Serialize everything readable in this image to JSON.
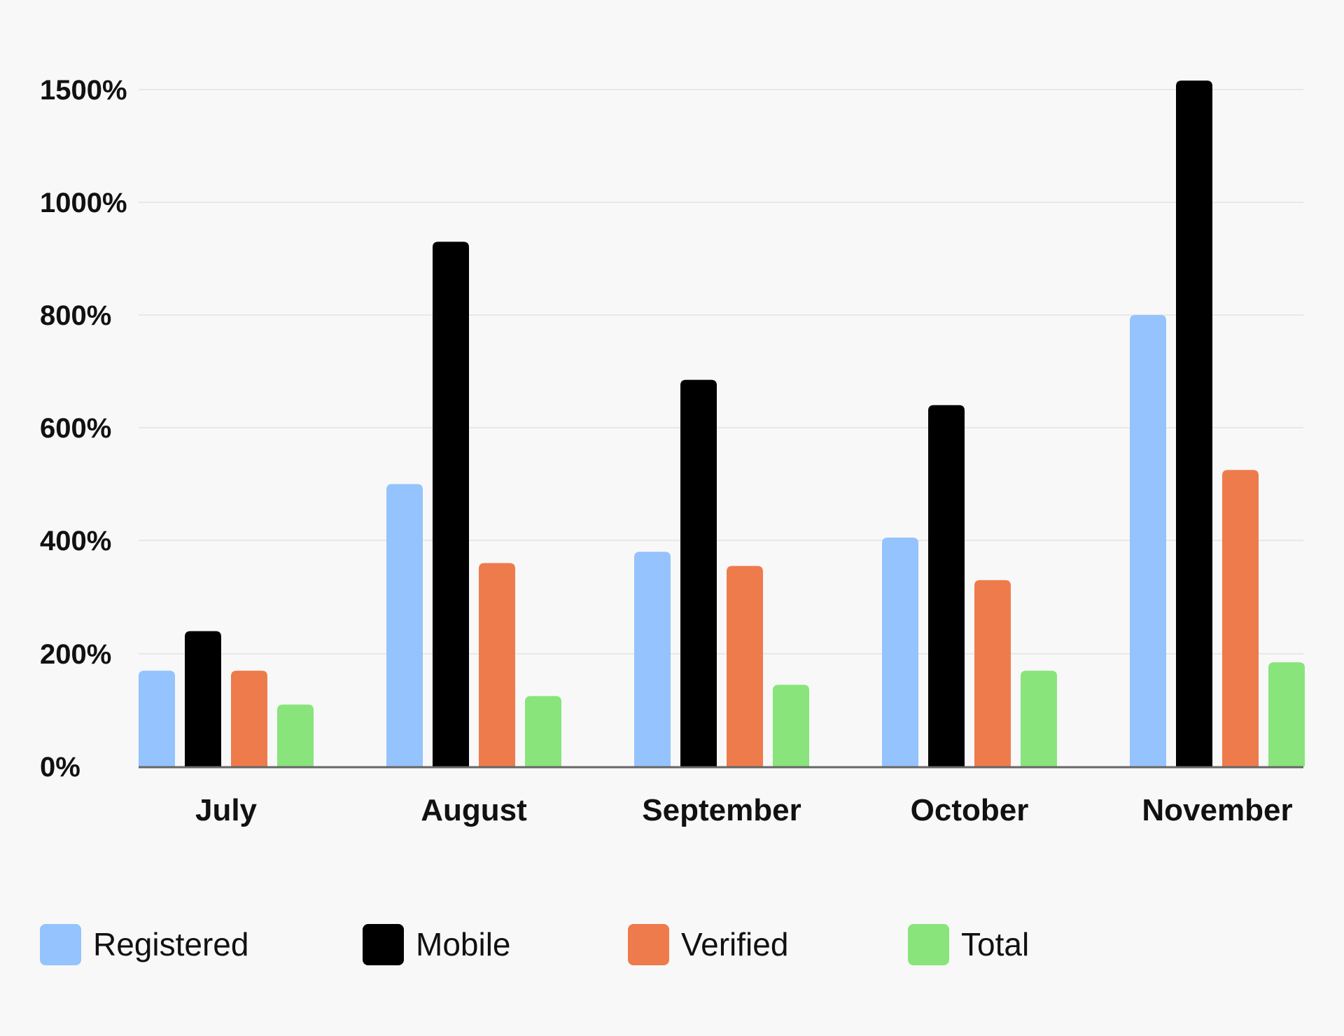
{
  "chart_data": {
    "type": "bar",
    "categories": [
      "July",
      "August",
      "September",
      "October",
      "November"
    ],
    "series": [
      {
        "name": "Registered",
        "color": "#94c3fd",
        "values": [
          170,
          500,
          380,
          405,
          800
        ]
      },
      {
        "name": "Mobile",
        "color": "#000000",
        "values": [
          240,
          930,
          685,
          640,
          1540
        ]
      },
      {
        "name": "Verified",
        "color": "#ee7b4b",
        "values": [
          170,
          360,
          355,
          330,
          525
        ]
      },
      {
        "name": "Total",
        "color": "#89e47c",
        "values": [
          110,
          125,
          145,
          170,
          185
        ]
      }
    ],
    "y_ticks": [
      {
        "value": 0,
        "label": "0%"
      },
      {
        "value": 200,
        "label": "200%"
      },
      {
        "value": 400,
        "label": "400%"
      },
      {
        "value": 600,
        "label": "600%"
      },
      {
        "value": 800,
        "label": "800%"
      },
      {
        "value": 1000,
        "label": "1000%"
      },
      {
        "value": 1500,
        "label": "1500%"
      }
    ],
    "y_scale": "piecewise: 0–800 linear, 800→1000 and 1000→1500 compressed segments",
    "grid": true,
    "legend_position": "bottom-left",
    "title": "",
    "xlabel": "",
    "ylabel": ""
  }
}
